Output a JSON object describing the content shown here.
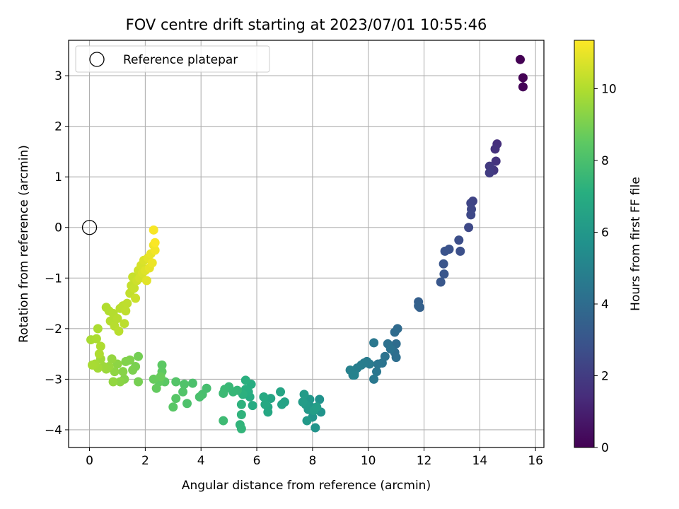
{
  "chart_data": {
    "type": "scatter",
    "title": "FOV centre drift starting at 2023/07/01 10:55:46",
    "xlabel": "Angular distance from reference (arcmin)",
    "ylabel": "Rotation from reference (arcmin)",
    "xlim": [
      -0.75,
      16.3
    ],
    "ylim": [
      -4.35,
      3.7
    ],
    "xticks": [
      0,
      2,
      4,
      6,
      8,
      10,
      12,
      14,
      16
    ],
    "yticks": [
      -4,
      -3,
      -2,
      -1,
      0,
      1,
      2,
      3
    ],
    "grid": true,
    "legend": {
      "label": "Reference platepar",
      "placement": "upper-left"
    },
    "reference_point": {
      "x": 0,
      "y": 0
    },
    "colorbar": {
      "label": "Hours from first FF file",
      "colormap": "viridis",
      "range": [
        0,
        11.35
      ],
      "ticks": [
        0,
        2,
        4,
        6,
        8,
        10
      ]
    },
    "points": [
      [
        15.45,
        3.32,
        0.0
      ],
      [
        15.55,
        2.96,
        0.05
      ],
      [
        15.55,
        2.78,
        0.1
      ],
      [
        14.62,
        1.65,
        1.5
      ],
      [
        14.55,
        1.55,
        1.6
      ],
      [
        14.58,
        1.31,
        1.7
      ],
      [
        14.5,
        1.13,
        1.8
      ],
      [
        14.35,
        1.21,
        1.9
      ],
      [
        14.35,
        1.08,
        2.0
      ],
      [
        13.75,
        0.52,
        2.3
      ],
      [
        13.68,
        0.48,
        2.35
      ],
      [
        13.7,
        0.36,
        2.4
      ],
      [
        13.68,
        0.25,
        2.45
      ],
      [
        13.6,
        0.0,
        2.5
      ],
      [
        13.25,
        -0.25,
        2.7
      ],
      [
        13.3,
        -0.47,
        2.75
      ],
      [
        12.9,
        -0.43,
        2.85
      ],
      [
        12.75,
        -0.47,
        2.9
      ],
      [
        12.7,
        -0.72,
        2.95
      ],
      [
        12.72,
        -0.92,
        3.0
      ],
      [
        12.6,
        -1.08,
        3.05
      ],
      [
        11.8,
        -1.47,
        3.4
      ],
      [
        11.85,
        -1.58,
        3.45
      ],
      [
        11.8,
        -1.55,
        3.5
      ],
      [
        11.05,
        -2.0,
        3.9
      ],
      [
        10.95,
        -2.07,
        3.95
      ],
      [
        11.0,
        -2.3,
        4.0
      ],
      [
        10.95,
        -2.47,
        4.05
      ],
      [
        11.0,
        -2.57,
        4.1
      ],
      [
        10.7,
        -2.3,
        4.2
      ],
      [
        10.8,
        -2.4,
        4.25
      ],
      [
        10.6,
        -2.55,
        4.3
      ],
      [
        10.5,
        -2.68,
        4.35
      ],
      [
        10.35,
        -2.7,
        4.4
      ],
      [
        10.3,
        -2.85,
        4.45
      ],
      [
        10.2,
        -2.28,
        4.5
      ],
      [
        10.2,
        -3.0,
        4.55
      ],
      [
        10.05,
        -2.7,
        4.6
      ],
      [
        9.95,
        -2.65,
        4.65
      ],
      [
        9.85,
        -2.68,
        4.7
      ],
      [
        9.75,
        -2.72,
        4.75
      ],
      [
        9.6,
        -2.78,
        4.8
      ],
      [
        9.5,
        -2.88,
        4.85
      ],
      [
        9.45,
        -2.92,
        4.9
      ],
      [
        9.35,
        -2.82,
        4.95
      ],
      [
        9.5,
        -2.92,
        5.0
      ],
      [
        8.25,
        -3.4,
        5.7
      ],
      [
        8.3,
        -3.65,
        5.75
      ],
      [
        8.1,
        -3.96,
        5.8
      ],
      [
        8.0,
        -3.75,
        5.85
      ],
      [
        7.95,
        -3.55,
        5.9
      ],
      [
        7.9,
        -3.4,
        5.95
      ],
      [
        7.85,
        -3.6,
        6.0
      ],
      [
        7.8,
        -3.82,
        6.05
      ],
      [
        7.75,
        -3.5,
        6.1
      ],
      [
        7.7,
        -3.3,
        6.15
      ],
      [
        7.65,
        -3.45,
        6.2
      ],
      [
        8.05,
        -3.62,
        6.25
      ],
      [
        8.15,
        -3.55,
        6.3
      ],
      [
        7.0,
        -3.45,
        6.5
      ],
      [
        6.9,
        -3.5,
        6.55
      ],
      [
        6.85,
        -3.25,
        6.6
      ],
      [
        6.5,
        -3.38,
        6.65
      ],
      [
        6.4,
        -3.55,
        6.7
      ],
      [
        6.4,
        -3.65,
        6.75
      ],
      [
        6.3,
        -3.5,
        6.8
      ],
      [
        6.25,
        -3.35,
        6.85
      ],
      [
        5.85,
        -3.52,
        6.9
      ],
      [
        5.75,
        -3.35,
        6.95
      ],
      [
        5.8,
        -3.1,
        7.0
      ],
      [
        5.7,
        -3.25,
        7.05
      ],
      [
        5.6,
        -3.2,
        7.1
      ],
      [
        5.6,
        -3.02,
        7.15
      ],
      [
        5.5,
        -3.3,
        7.2
      ],
      [
        5.45,
        -3.5,
        7.25
      ],
      [
        5.45,
        -3.7,
        7.3
      ],
      [
        5.4,
        -3.9,
        7.35
      ],
      [
        5.45,
        -3.98,
        7.4
      ],
      [
        5.3,
        -3.22,
        7.45
      ],
      [
        5.15,
        -3.25,
        7.5
      ],
      [
        5.0,
        -3.15,
        7.55
      ],
      [
        4.85,
        -3.2,
        7.6
      ],
      [
        4.8,
        -3.28,
        7.65
      ],
      [
        4.8,
        -3.82,
        7.7
      ],
      [
        4.2,
        -3.18,
        7.9
      ],
      [
        4.05,
        -3.3,
        7.95
      ],
      [
        3.95,
        -3.35,
        8.0
      ],
      [
        3.7,
        -3.08,
        8.05
      ],
      [
        3.5,
        -3.48,
        8.1
      ],
      [
        3.4,
        -3.1,
        8.15
      ],
      [
        3.35,
        -3.25,
        8.2
      ],
      [
        3.1,
        -3.05,
        8.25
      ],
      [
        3.1,
        -3.38,
        8.3
      ],
      [
        3.0,
        -3.55,
        8.35
      ],
      [
        2.7,
        -3.05,
        8.4
      ],
      [
        2.6,
        -2.72,
        8.45
      ],
      [
        2.6,
        -2.85,
        8.5
      ],
      [
        2.5,
        -3.05,
        8.55
      ],
      [
        2.4,
        -3.18,
        8.6
      ],
      [
        2.3,
        -3.0,
        8.65
      ],
      [
        2.55,
        -2.95,
        8.7
      ],
      [
        1.75,
        -2.55,
        8.9
      ],
      [
        1.75,
        -3.05,
        8.95
      ],
      [
        1.65,
        -2.75,
        9.0
      ],
      [
        1.55,
        -2.82,
        9.05
      ],
      [
        1.45,
        -2.62,
        9.1
      ],
      [
        1.3,
        -2.65,
        9.15
      ],
      [
        1.25,
        -3.0,
        9.2
      ],
      [
        1.2,
        -2.85,
        9.25
      ],
      [
        1.1,
        -3.05,
        9.3
      ],
      [
        1.0,
        -2.7,
        9.35
      ],
      [
        0.9,
        -2.85,
        9.4
      ],
      [
        0.85,
        -3.05,
        9.45
      ],
      [
        0.8,
        -2.6,
        9.5
      ],
      [
        0.7,
        -2.75,
        9.55
      ],
      [
        0.6,
        -2.8,
        9.6
      ],
      [
        0.5,
        -2.75,
        9.65
      ],
      [
        0.4,
        -2.6,
        9.7
      ],
      [
        0.3,
        -2.78,
        9.75
      ],
      [
        0.2,
        -2.7,
        9.8
      ],
      [
        0.1,
        -2.72,
        9.85
      ],
      [
        0.05,
        -2.22,
        9.85
      ],
      [
        0.3,
        -2.0,
        9.9
      ],
      [
        0.25,
        -2.2,
        9.9
      ],
      [
        0.4,
        -2.35,
        9.95
      ],
      [
        0.35,
        -2.5,
        9.95
      ],
      [
        0.6,
        -1.58,
        10.0
      ],
      [
        0.7,
        -1.65,
        10.0
      ],
      [
        0.75,
        -1.85,
        10.05
      ],
      [
        0.85,
        -1.7,
        10.05
      ],
      [
        0.9,
        -1.95,
        10.1
      ],
      [
        1.0,
        -1.8,
        10.1
      ],
      [
        1.05,
        -2.05,
        10.15
      ],
      [
        1.1,
        -1.6,
        10.15
      ],
      [
        1.2,
        -1.55,
        10.2
      ],
      [
        1.25,
        -1.9,
        10.2
      ],
      [
        1.3,
        -1.65,
        10.25
      ],
      [
        1.35,
        -1.5,
        10.25
      ],
      [
        1.45,
        -1.3,
        10.3
      ],
      [
        1.5,
        -1.15,
        10.35
      ],
      [
        1.55,
        -0.98,
        10.4
      ],
      [
        1.6,
        -1.2,
        10.4
      ],
      [
        1.65,
        -1.4,
        10.45
      ],
      [
        1.7,
        -1.05,
        10.5
      ],
      [
        1.75,
        -0.85,
        10.55
      ],
      [
        1.8,
        -1.0,
        10.6
      ],
      [
        1.85,
        -0.75,
        10.65
      ],
      [
        1.9,
        -0.9,
        10.7
      ],
      [
        1.95,
        -0.65,
        10.75
      ],
      [
        2.0,
        -0.85,
        10.8
      ],
      [
        2.05,
        -1.05,
        10.85
      ],
      [
        2.1,
        -0.6,
        10.9
      ],
      [
        2.15,
        -0.8,
        10.95
      ],
      [
        2.2,
        -0.52,
        11.0
      ],
      [
        2.25,
        -0.7,
        11.05
      ],
      [
        2.3,
        -0.35,
        11.1
      ],
      [
        2.35,
        -0.45,
        11.15
      ],
      [
        2.3,
        -0.05,
        11.25
      ],
      [
        2.35,
        -0.3,
        11.3
      ]
    ]
  }
}
